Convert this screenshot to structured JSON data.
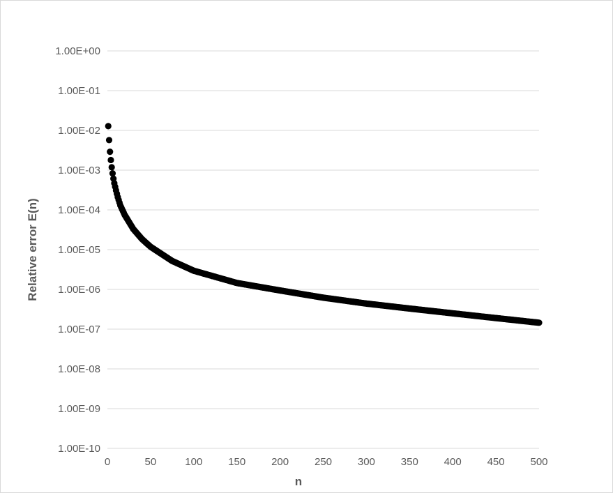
{
  "chart_data": {
    "type": "scatter",
    "title": "",
    "xlabel": "n",
    "ylabel": "Relative error E(n)",
    "xlim": [
      0,
      500
    ],
    "ylim": [
      1e-10,
      1
    ],
    "y_scale": "log",
    "x_ticks": [
      "0",
      "50",
      "100",
      "150",
      "200",
      "250",
      "300",
      "350",
      "400",
      "450",
      "500"
    ],
    "y_ticks": [
      "1.00E+00",
      "1.00E-01",
      "1.00E-02",
      "1.00E-03",
      "1.00E-04",
      "1.00E-05",
      "1.00E-06",
      "1.00E-07",
      "1.00E-08",
      "1.00E-09",
      "1.00E-10"
    ],
    "grid": "horizontal",
    "legend": "none",
    "marker_color": "#000000",
    "gridline_color": "#d9d9d9",
    "series": [
      {
        "x": [
          1,
          2,
          3,
          4,
          5,
          6,
          7,
          8,
          10,
          12,
          15,
          20,
          30,
          40,
          50,
          75,
          100,
          150,
          200,
          250,
          300,
          350,
          400,
          450,
          500
        ],
        "y": [
          0.0128,
          0.0057,
          0.0029,
          0.0018,
          0.00118,
          0.00083,
          0.00061,
          0.00047,
          0.00031,
          0.00021,
          0.00013,
          7.5e-05,
          3.3e-05,
          1.85e-05,
          1.18e-05,
          5.2e-06,
          2.95e-06,
          1.45e-06,
          9.4e-07,
          6.2e-07,
          4.4e-07,
          3.3e-07,
          2.5e-07,
          1.9e-07,
          1.45e-07
        ]
      }
    ]
  }
}
